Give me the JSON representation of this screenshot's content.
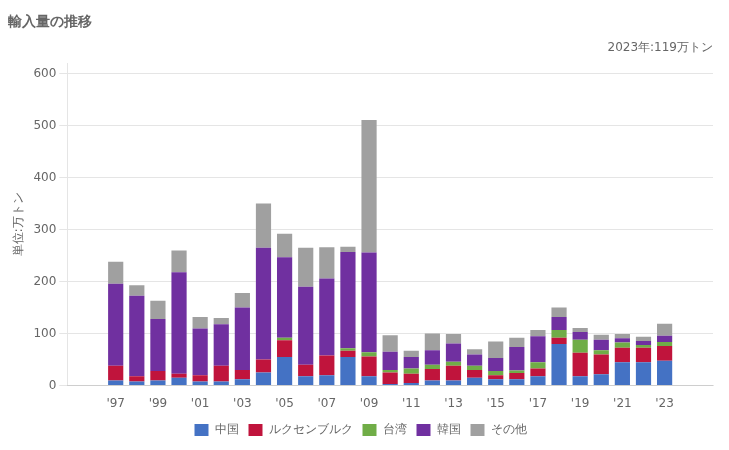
{
  "chart_data": {
    "type": "bar",
    "title": "輸入量の推移",
    "ylabel": "単位:万トン",
    "annotation": "2023年:119万トン",
    "x": [
      1997,
      1998,
      1999,
      2000,
      2001,
      2002,
      2003,
      2004,
      2005,
      2006,
      2007,
      2008,
      2009,
      2010,
      2011,
      2012,
      2013,
      2014,
      2015,
      2016,
      2017,
      2018,
      2019,
      2020,
      2021,
      2022,
      2023
    ],
    "series": [
      {
        "name": "中国",
        "color": "#4472c4",
        "values": [
          10,
          8,
          10,
          15,
          8,
          8,
          12,
          25,
          55,
          18,
          20,
          55,
          18,
          3,
          5,
          10,
          10,
          15,
          12,
          12,
          18,
          80,
          18,
          22,
          45,
          45,
          48
        ]
      },
      {
        "name": "ルクセンブルク",
        "color": "#c0143c",
        "values": [
          28,
          10,
          18,
          8,
          12,
          30,
          18,
          25,
          32,
          22,
          38,
          12,
          38,
          22,
          18,
          22,
          28,
          15,
          8,
          12,
          15,
          12,
          45,
          38,
          28,
          28,
          28
        ]
      },
      {
        "name": "台湾",
        "color": "#70ad47",
        "values": [
          0,
          0,
          0,
          0,
          0,
          0,
          0,
          0,
          5,
          0,
          0,
          5,
          8,
          5,
          10,
          8,
          8,
          8,
          8,
          5,
          12,
          15,
          25,
          8,
          10,
          5,
          8
        ]
      },
      {
        "name": "韓国",
        "color": "#7030a0",
        "values": [
          158,
          155,
          100,
          195,
          90,
          80,
          120,
          215,
          155,
          150,
          148,
          185,
          192,
          35,
          22,
          28,
          35,
          22,
          25,
          45,
          50,
          25,
          15,
          20,
          8,
          8,
          12
        ]
      },
      {
        "name": "その他",
        "color": "#a0a0a0",
        "values": [
          42,
          20,
          35,
          42,
          22,
          12,
          28,
          85,
          45,
          75,
          60,
          10,
          255,
          32,
          12,
          32,
          18,
          10,
          32,
          18,
          12,
          18,
          8,
          10,
          8,
          8,
          23
        ]
      }
    ],
    "xlim": [
      1995.8,
      2024.2
    ],
    "xticks": [
      {
        "value": 1997,
        "label": "'97"
      },
      {
        "value": 1999,
        "label": "'99"
      },
      {
        "value": 2001,
        "label": "'01"
      },
      {
        "value": 2003,
        "label": "'03"
      },
      {
        "value": 2005,
        "label": "'05"
      },
      {
        "value": 2007,
        "label": "'07"
      },
      {
        "value": 2009,
        "label": "'09"
      },
      {
        "value": 2011,
        "label": "'11"
      },
      {
        "value": 2013,
        "label": "'13"
      },
      {
        "value": 2015,
        "label": "'15"
      },
      {
        "value": 2017,
        "label": "'17"
      },
      {
        "value": 2019,
        "label": "'19"
      },
      {
        "value": 2021,
        "label": "'21"
      },
      {
        "value": 2023,
        "label": "'23"
      }
    ],
    "ylim": [
      0,
      620
    ],
    "yticks": [
      0,
      100,
      200,
      300,
      400,
      500,
      600
    ],
    "stacked": true,
    "grid": true,
    "legend": "bottom"
  }
}
